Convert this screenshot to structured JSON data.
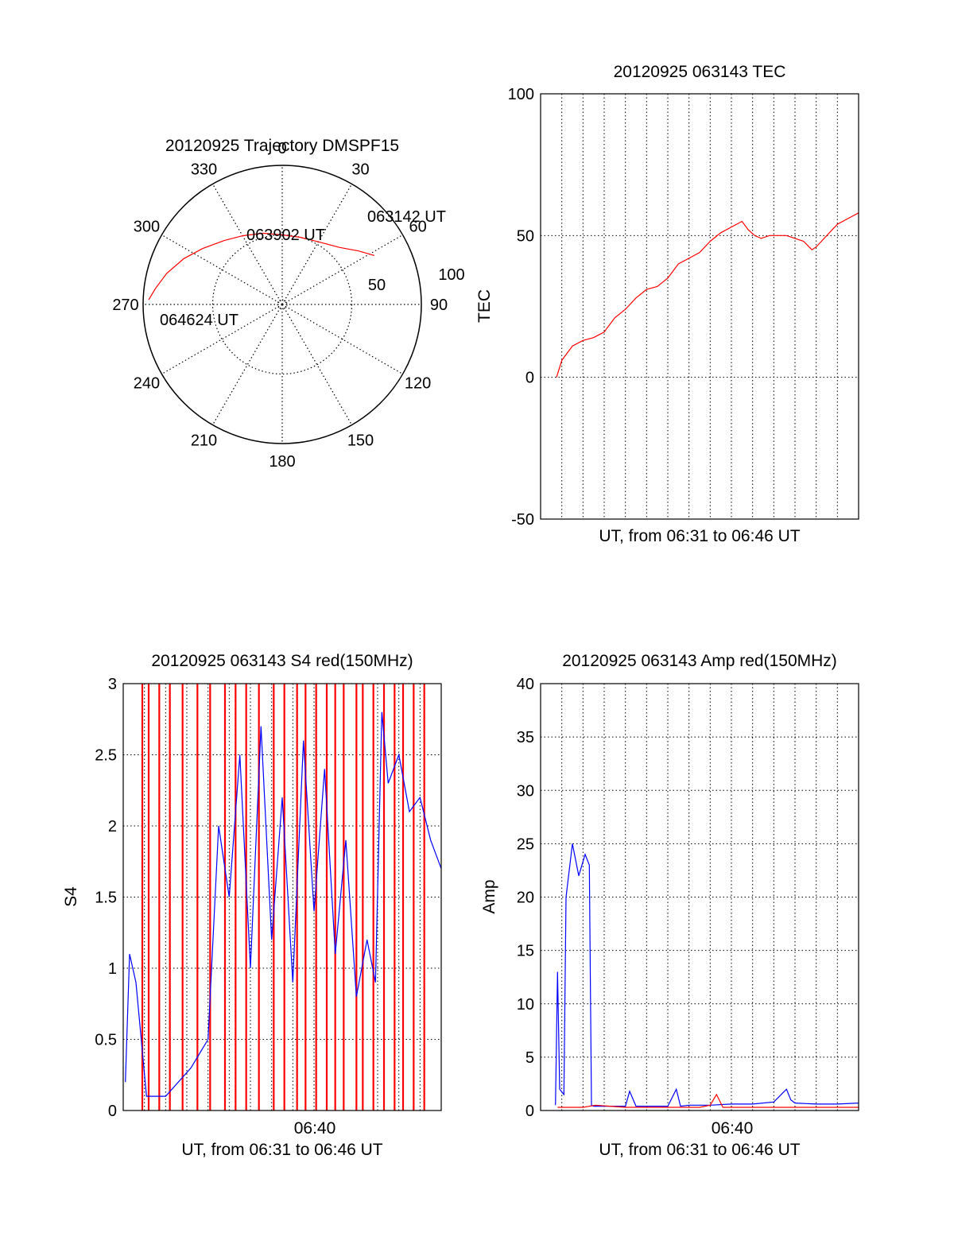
{
  "colors": {
    "red_series": "#ff0000",
    "blue_series": "#0000ff",
    "axis": "#000000",
    "grid": "#000000"
  },
  "chart_data": [
    {
      "type": "polar",
      "title": "20120925 Trajectory DMSPF15",
      "angle_labels": [
        "0",
        "30",
        "60",
        "90",
        "120",
        "150",
        "180",
        "210",
        "240",
        "270",
        "300",
        "330"
      ],
      "radial_labels": [
        "50",
        "100"
      ],
      "rlim": [
        0,
        100
      ],
      "grid": true,
      "track": {
        "color": "red",
        "points": [
          {
            "az": 62,
            "r": 75
          },
          {
            "az": 55,
            "r": 67
          },
          {
            "az": 45,
            "r": 58
          },
          {
            "az": 30,
            "r": 52
          },
          {
            "az": 15,
            "r": 50
          },
          {
            "az": 0,
            "r": 50
          },
          {
            "az": 345,
            "r": 53
          },
          {
            "az": 330,
            "r": 57
          },
          {
            "az": 318,
            "r": 62
          },
          {
            "az": 305,
            "r": 70
          },
          {
            "az": 295,
            "r": 78
          },
          {
            "az": 285,
            "r": 86
          },
          {
            "az": 277,
            "r": 92
          },
          {
            "az": 272,
            "r": 96
          }
        ]
      },
      "annotations": [
        "063142 UT",
        "063902 UT",
        "064624 UT"
      ]
    },
    {
      "type": "line",
      "title": "20120925 063143 TEC",
      "xlabel": "UT, from 06:31 to 06:46 UT",
      "ylabel": "TEC",
      "ylim": [
        -50,
        100
      ],
      "yticks": [
        "-50",
        "0",
        "50",
        "100"
      ],
      "xlim_minutes": [
        0,
        15
      ],
      "grid": true,
      "series": [
        {
          "color": "red",
          "x": [
            0.75,
            1.0,
            1.5,
            2.0,
            2.5,
            3.0,
            3.5,
            4.0,
            4.5,
            5.0,
            5.5,
            6.0,
            6.5,
            7.0,
            7.5,
            8.0,
            8.5,
            9.0,
            9.5,
            9.8,
            10.1,
            10.4,
            10.8,
            11.2,
            11.6,
            12.0,
            12.4,
            12.8,
            13.0,
            13.5,
            14.0,
            14.5,
            15.0
          ],
          "y": [
            0,
            6,
            11,
            13,
            14,
            16,
            21,
            24,
            28,
            31,
            32,
            35,
            40,
            42,
            44,
            48,
            51,
            53,
            55,
            52,
            50,
            49,
            50,
            50,
            50,
            49,
            48,
            45,
            46,
            50,
            54,
            56,
            58
          ]
        }
      ]
    },
    {
      "type": "line",
      "title": "20120925 063143 S4 red(150MHz)",
      "xlabel": "UT, from 06:31 to 06:46 UT",
      "ylabel": "S4",
      "ylim": [
        0,
        3
      ],
      "yticks": [
        "0",
        "0.5",
        "1",
        "1.5",
        "2",
        "2.5",
        "3"
      ],
      "xticks": [
        "06:40"
      ],
      "xlim_minutes": [
        0,
        15
      ],
      "grid": true,
      "series": [
        {
          "color": "red",
          "x": [
            0.9,
            1.2,
            1.7,
            2.2,
            2.8,
            3.5,
            4.1,
            4.8,
            5.3,
            5.8,
            6.4,
            7.1,
            7.6,
            8.2,
            8.6,
            9.1,
            9.6,
            10.0,
            10.4,
            11.0,
            11.3,
            11.8,
            12.3,
            12.8,
            13.2,
            13.7,
            14.2
          ],
          "y": [
            3,
            3,
            3,
            3,
            3,
            3,
            3,
            3,
            3,
            3,
            3,
            3,
            3,
            3,
            3,
            3,
            3,
            3,
            3,
            3,
            3,
            3,
            3,
            3,
            3,
            3,
            3
          ]
        },
        {
          "color": "blue",
          "x": [
            0.1,
            0.3,
            0.6,
            1.1,
            1.6,
            2.0,
            3.2,
            4.0,
            4.5,
            5.0,
            5.5,
            6.0,
            6.5,
            7.0,
            7.5,
            8.0,
            8.5,
            9.0,
            9.5,
            10.0,
            10.5,
            11.0,
            11.5,
            11.9,
            12.2,
            12.5,
            13.0,
            13.5,
            14.0,
            14.5,
            15.0
          ],
          "y": [
            0.2,
            1.1,
            0.9,
            0.1,
            0.1,
            0.1,
            0.3,
            0.5,
            2.0,
            1.5,
            2.5,
            1.0,
            2.7,
            1.2,
            2.2,
            0.9,
            2.6,
            1.4,
            2.4,
            1.1,
            1.9,
            0.8,
            1.2,
            0.9,
            2.8,
            2.3,
            2.5,
            2.1,
            2.2,
            1.9,
            1.7
          ]
        }
      ]
    },
    {
      "type": "line",
      "title": "20120925 063143 Amp red(150MHz)",
      "xlabel": "UT, from 06:31 to 06:46 UT",
      "ylabel": "Amp",
      "ylim": [
        0,
        40
      ],
      "yticks": [
        "0",
        "5",
        "10",
        "15",
        "20",
        "25",
        "30",
        "35",
        "40"
      ],
      "xticks": [
        "06:40"
      ],
      "xlim_minutes": [
        0,
        15
      ],
      "grid": true,
      "series": [
        {
          "color": "blue",
          "x": [
            0.7,
            0.8,
            0.9,
            1.1,
            1.2,
            1.5,
            1.8,
            2.1,
            2.3,
            2.4,
            2.5,
            3.0,
            4.0,
            4.2,
            4.5,
            5.0,
            6.0,
            6.4,
            6.6,
            7.0,
            8.0,
            9.0,
            10.0,
            11.0,
            11.6,
            11.8,
            12.0,
            13.0,
            14.0,
            15.0
          ],
          "y": [
            0.5,
            13,
            2,
            1.5,
            20,
            25,
            22,
            24,
            23,
            0.5,
            0.4,
            0.4,
            0.4,
            1.8,
            0.4,
            0.4,
            0.4,
            2.0,
            0.4,
            0.5,
            0.5,
            0.6,
            0.6,
            0.8,
            2.0,
            1.0,
            0.7,
            0.6,
            0.6,
            0.7
          ]
        },
        {
          "color": "red",
          "x": [
            0.8,
            1.2,
            2.0,
            2.6,
            4.0,
            6.0,
            7.5,
            8.0,
            8.3,
            8.6,
            10.0,
            12.0,
            14.0,
            15.0
          ],
          "y": [
            0.3,
            0.3,
            0.3,
            0.5,
            0.3,
            0.3,
            0.3,
            0.5,
            1.5,
            0.3,
            0.3,
            0.3,
            0.3,
            0.3
          ]
        }
      ]
    }
  ]
}
